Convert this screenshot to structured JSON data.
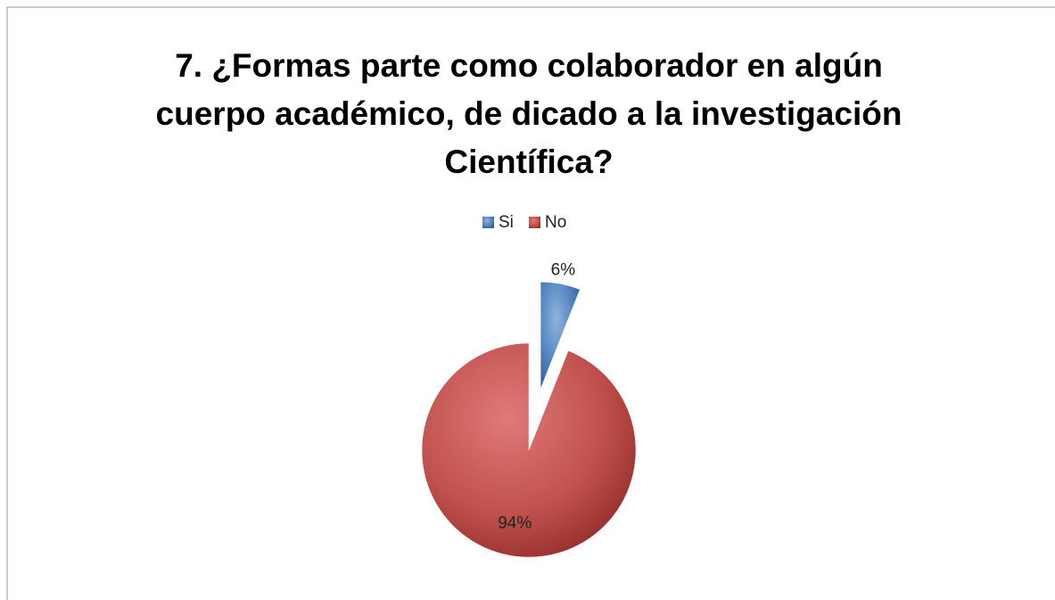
{
  "chart_data": {
    "type": "pie",
    "title": [
      "7. ¿Formas parte como colaborador en algún",
      "cuerpo académico, de dicado a la investigación",
      "Científica?"
    ],
    "categories": [
      "Si",
      "No"
    ],
    "values": [
      6,
      94
    ],
    "value_labels": [
      "6%",
      "94%"
    ],
    "colors": [
      "#4f81bd",
      "#c0504d"
    ],
    "legend": "top"
  }
}
